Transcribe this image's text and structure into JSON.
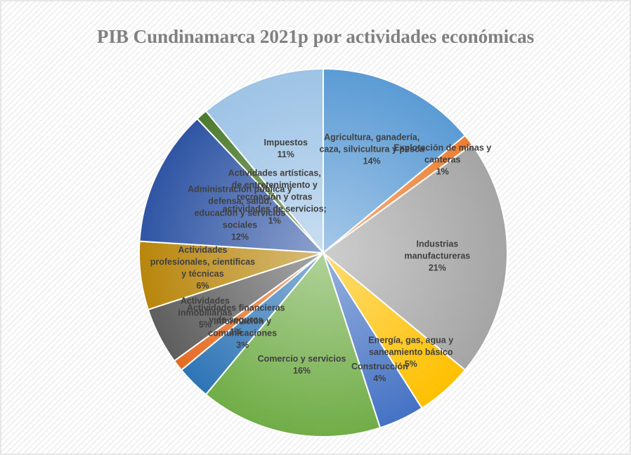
{
  "chart_data": {
    "type": "pie",
    "title": "PIB Cundinamarca 2021p por actividades económicas",
    "categories": [
      "Agricultura, ganadería, caza, silvicultura y pesca",
      "Explotación de minas y canteras",
      "Industrias manufactureras",
      "Energía, gas, agua y saneamiento básico",
      "Construcción",
      "Comercio y servicios",
      "Información y comunicaciones",
      "Actividades financieras y de seguros",
      "Actividades inmobiliarias",
      "Actividades profesionales, científicas y técnicas",
      "Administración pública y defensa, salud, educación y servicios sociales",
      "Actividades artísticas, de entretenimiento y recreación y otras actividades de servicios;",
      "Impuestos"
    ],
    "values": [
      14,
      1,
      21,
      5,
      4,
      16,
      3,
      1,
      5,
      6,
      12,
      1,
      11
    ],
    "value_labels": [
      "14%",
      "1%",
      "21%",
      "5%",
      "4%",
      "16%",
      "3%",
      "1%",
      "5%",
      "6%",
      "12%",
      "1%",
      "11%"
    ],
    "colors": [
      "#5b9bd5",
      "#ed7d31",
      "#a5a5a5",
      "#ffc000",
      "#4472c4",
      "#70ad47",
      "#2e75b6",
      "#e46c24",
      "#5e5e5e",
      "#b8860b",
      "#2f55a4",
      "#4b7a2d",
      "#9dc3e6"
    ]
  }
}
